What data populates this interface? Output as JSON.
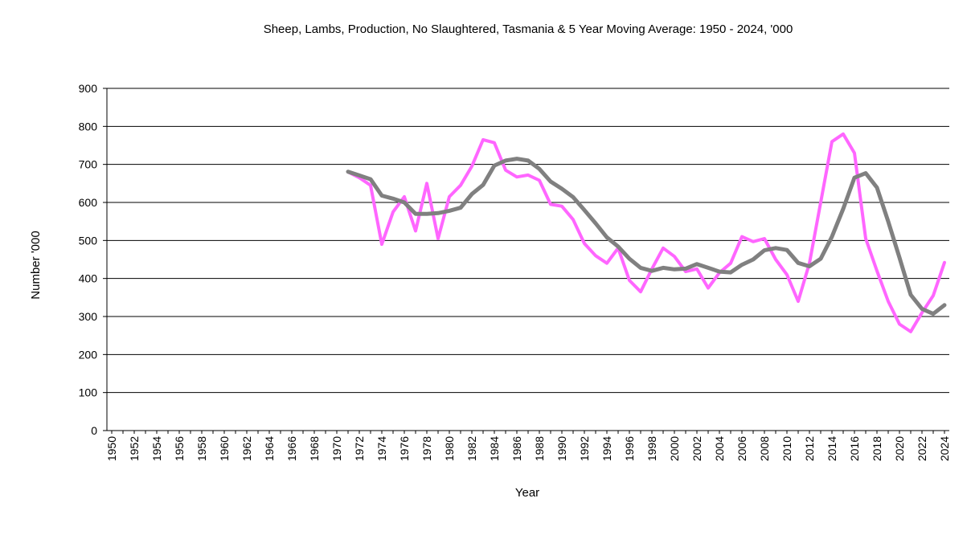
{
  "chart_data": {
    "type": "line",
    "title": "Sheep, Lambs, Production, No Slaughtered, Tasmania & 5 Year Moving Average: 1950 - 2024, '000",
    "xlabel": "Year",
    "ylabel": "Number '000",
    "ylim": [
      0,
      900
    ],
    "yticks": [
      0,
      100,
      200,
      300,
      400,
      500,
      600,
      700,
      800,
      900
    ],
    "xlim": [
      1950,
      2024
    ],
    "xticks": [
      1950,
      1952,
      1954,
      1956,
      1958,
      1960,
      1962,
      1964,
      1966,
      1968,
      1970,
      1972,
      1974,
      1976,
      1978,
      1980,
      1982,
      1984,
      1986,
      1988,
      1990,
      1992,
      1994,
      1996,
      1998,
      2000,
      2002,
      2004,
      2006,
      2008,
      2010,
      2012,
      2014,
      2016,
      2018,
      2020,
      2022,
      2024
    ],
    "grid": true,
    "legend": "none",
    "series": [
      {
        "name": "Sheep, Lambs, Production, No Slaughtered, Tasmania",
        "color": "#ff66ff",
        "x": [
          1971,
          1972,
          1973,
          1974,
          1975,
          1976,
          1977,
          1978,
          1979,
          1980,
          1981,
          1982,
          1983,
          1984,
          1985,
          1986,
          1987,
          1988,
          1989,
          1990,
          1991,
          1992,
          1993,
          1994,
          1995,
          1996,
          1997,
          1998,
          1999,
          2000,
          2001,
          2002,
          2003,
          2004,
          2005,
          2006,
          2007,
          2008,
          2009,
          2010,
          2011,
          2012,
          2013,
          2014,
          2015,
          2016,
          2017,
          2018,
          2019,
          2020,
          2021,
          2022,
          2023,
          2024
        ],
        "values": [
          680,
          665,
          645,
          490,
          575,
          615,
          525,
          650,
          505,
          615,
          645,
          695,
          765,
          757,
          685,
          667,
          672,
          658,
          595,
          590,
          555,
          492,
          460,
          440,
          480,
          395,
          365,
          425,
          480,
          458,
          418,
          425,
          375,
          415,
          440,
          510,
          497,
          505,
          450,
          410,
          340,
          440,
          600,
          760,
          780,
          730,
          505,
          420,
          340,
          280,
          260,
          310,
          355,
          442
        ]
      },
      {
        "name": "5 Year Moving Average",
        "color": "#808080",
        "x": [
          1971,
          1972,
          1973,
          1974,
          1975,
          1976,
          1977,
          1978,
          1979,
          1980,
          1981,
          1982,
          1983,
          1984,
          1985,
          1986,
          1987,
          1988,
          1989,
          1990,
          1991,
          1992,
          1993,
          1994,
          1995,
          1996,
          1997,
          1998,
          1999,
          2000,
          2001,
          2002,
          2003,
          2004,
          2005,
          2006,
          2007,
          2008,
          2009,
          2010,
          2011,
          2012,
          2013,
          2014,
          2015,
          2016,
          2017,
          2018,
          2019,
          2020,
          2021,
          2022,
          2023,
          2024
        ],
        "values": [
          681,
          671,
          661,
          618,
          610,
          600,
          570,
          570,
          572,
          578,
          586,
          622,
          646,
          697,
          710,
          715,
          710,
          688,
          655,
          636,
          614,
          580,
          545,
          508,
          484,
          452,
          428,
          420,
          428,
          424,
          426,
          438,
          428,
          418,
          416,
          436,
          450,
          474,
          480,
          475,
          441,
          432,
          452,
          510,
          583,
          665,
          677,
          639,
          550,
          455,
          357,
          320,
          307,
          330
        ]
      }
    ]
  }
}
